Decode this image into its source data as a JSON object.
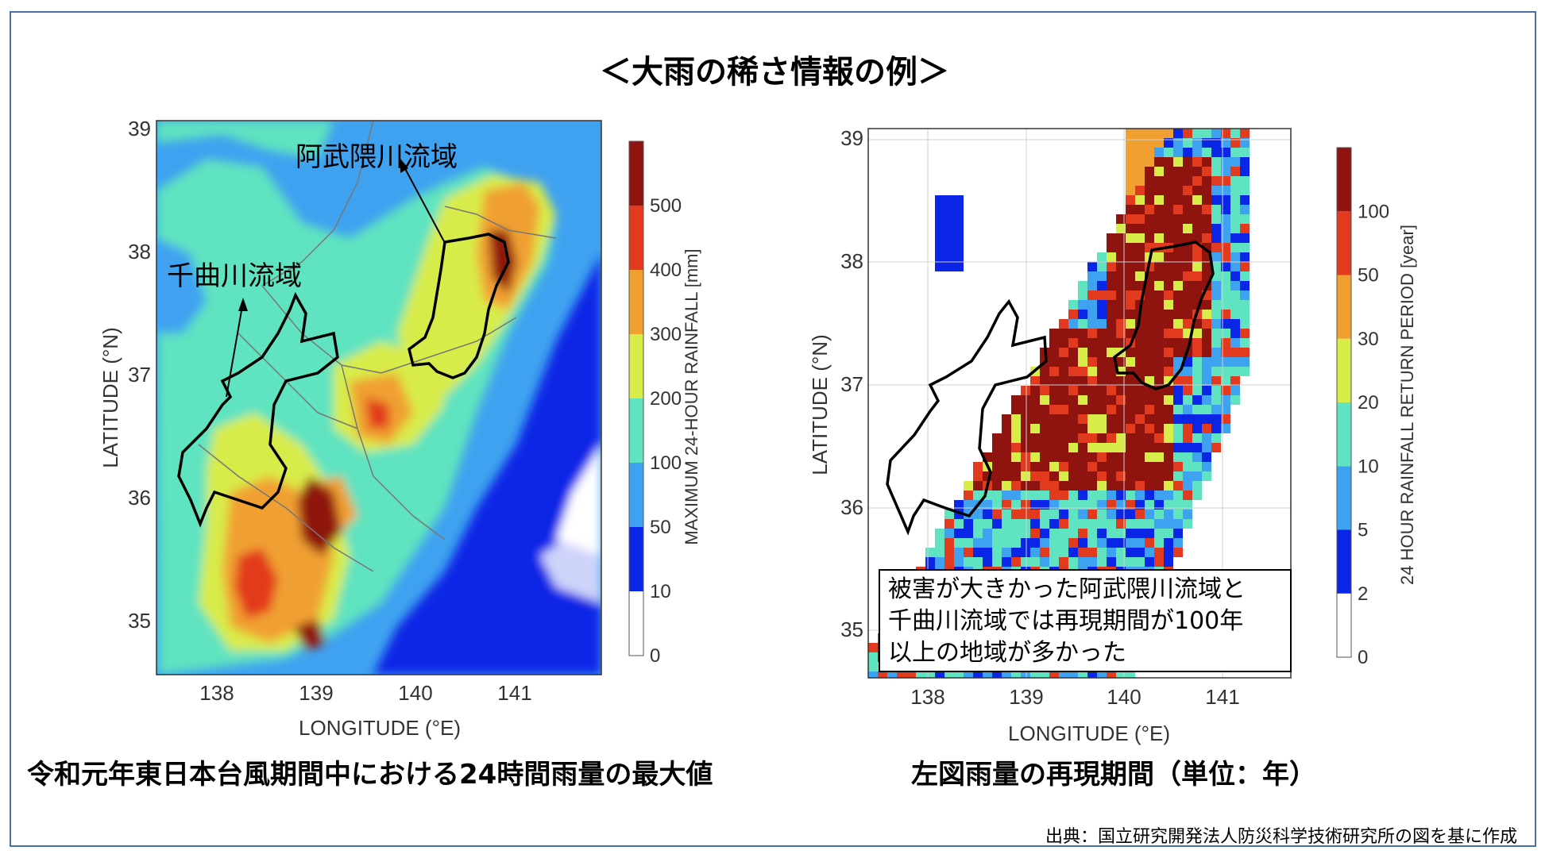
{
  "title": "＜大雨の稀さ情報の例＞",
  "left_map": {
    "caption": "令和元年東日本台風期間中における24時間雨量の最大値",
    "xlabel": "LONGITUDE (°E)",
    "ylabel": "LATITUDE (°N)",
    "x_ticks": [
      "138",
      "139",
      "140",
      "141"
    ],
    "y_ticks": [
      "39",
      "38",
      "37",
      "36",
      "35"
    ],
    "colorbar_label": "MAXIMUM 24-HOUR RAINFALL [mm]",
    "colorbar_ticks": [
      "0",
      "10",
      "50",
      "100",
      "200",
      "300",
      "400",
      "500"
    ],
    "colorbar_colors": [
      "#ffffff",
      "#0a25e6",
      "#3fa2f0",
      "#5fe3c0",
      "#d8ec4a",
      "#f0a030",
      "#e23a1e",
      "#8f1410"
    ],
    "annotations": {
      "abukuma": "阿武隈川流域",
      "chikuma": "千曲川流域"
    }
  },
  "right_map": {
    "caption": "左図雨量の再現期間（単位：年）",
    "xlabel": "LONGITUDE (°E)",
    "ylabel": "LATITUDE (°N)",
    "x_ticks": [
      "138",
      "139",
      "140",
      "141"
    ],
    "y_ticks": [
      "39",
      "38",
      "37",
      "36",
      "35"
    ],
    "colorbar_label": "24 HOUR RAINFALL RETURN PERIOD [year]",
    "colorbar_ticks": [
      "0",
      "2",
      "5",
      "10",
      "20",
      "30",
      "50",
      "100"
    ],
    "colorbar_colors": [
      "#ffffff",
      "#0a25e6",
      "#3fa2f0",
      "#5fe3c0",
      "#d8ec4a",
      "#f0a030",
      "#e23a1e",
      "#8f1410"
    ],
    "callout_lines": [
      "被害が大きかった阿武隈川流域と",
      "千曲川流域では再現期間が100年",
      "以上の地域が多かった"
    ]
  },
  "source": "出典：国立研究開発法人防災科学技術研究所の図を基に作成"
}
